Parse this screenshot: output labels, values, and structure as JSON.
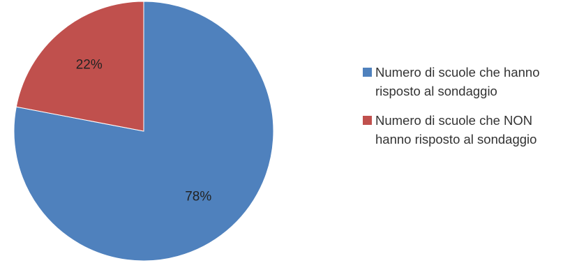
{
  "chart_data": {
    "type": "pie",
    "title": "",
    "start_angle_deg": 0,
    "direction": "clockwise",
    "legend_position": "right",
    "slices": [
      {
        "label": "Numero di scuole che hanno risposto al sondaggio",
        "value": 78,
        "display": "78%",
        "color": "#4F81BD"
      },
      {
        "label": "Numero di scuole che NON hanno risposto al sondaggio",
        "value": 22,
        "display": "22%",
        "color": "#C0504D"
      }
    ]
  },
  "legend": {
    "items": [
      {
        "text": "Numero di scuole che hanno risposto al sondaggio",
        "color": "#4F81BD"
      },
      {
        "text": "Numero di scuole che NON hanno risposto al sondaggio",
        "color": "#C0504D"
      }
    ]
  }
}
